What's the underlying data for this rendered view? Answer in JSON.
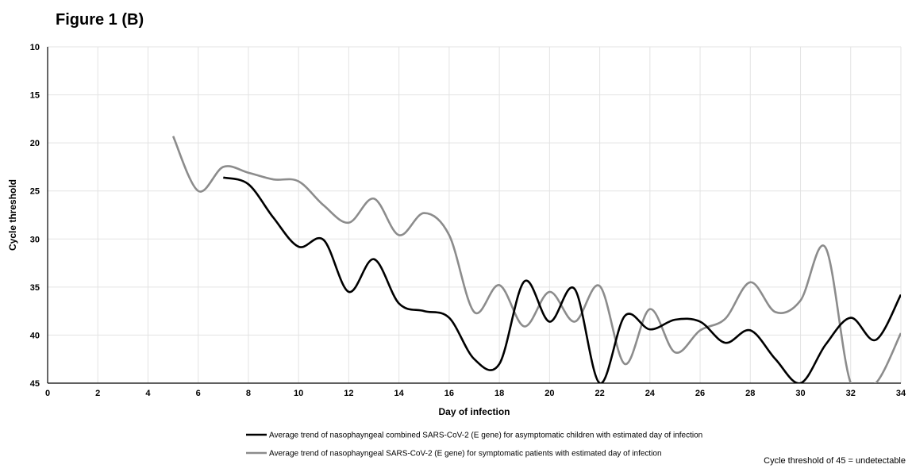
{
  "figure_title": "Figure 1 (B)",
  "note": "Cycle threshold of 45  = undetectable",
  "chart_data": {
    "type": "line",
    "xlabel": "Day of infection",
    "ylabel": "Cycle threshold",
    "xlim": [
      0,
      34
    ],
    "ylim": [
      10,
      45
    ],
    "y_inverted": true,
    "x_ticks": [
      0,
      2,
      4,
      6,
      8,
      10,
      12,
      14,
      16,
      18,
      20,
      22,
      24,
      26,
      28,
      30,
      32,
      34
    ],
    "y_ticks": [
      10,
      15,
      20,
      25,
      30,
      35,
      40,
      45
    ],
    "grid": true,
    "legend_position": "bottom",
    "series": [
      {
        "name": "Average trend of nasophayngeal combined SARS-CoV-2 (E gene) for asymptomatic children with estimated day of infection",
        "color": "#000000",
        "x": [
          7,
          8,
          9,
          10,
          11,
          12,
          13,
          14,
          15,
          16,
          17,
          18,
          19,
          20,
          21,
          22,
          23,
          24,
          25,
          26,
          27,
          28,
          29,
          30,
          31,
          32,
          33,
          34
        ],
        "y": [
          23.6,
          24.3,
          27.8,
          30.8,
          30.1,
          35.5,
          32.1,
          36.7,
          37.5,
          38.2,
          42.5,
          43.0,
          34.4,
          38.6,
          35.2,
          45.0,
          38.0,
          39.4,
          38.4,
          38.6,
          40.8,
          39.5,
          42.5,
          45.0,
          41.0,
          38.2,
          40.5,
          35.8
        ]
      },
      {
        "name": "Average trend of nasophayngeal SARS-CoV-2 (E gene) for symptomatic patients with estimated day of infection",
        "color": "#8c8c8c",
        "x": [
          5,
          6,
          7,
          8,
          9,
          10,
          11,
          12,
          13,
          14,
          15,
          16,
          17,
          18,
          19,
          20,
          21,
          22,
          23,
          24,
          25,
          26,
          27,
          28,
          29,
          30,
          31,
          32,
          33,
          34
        ],
        "y": [
          19.3,
          25.0,
          22.5,
          23.1,
          23.8,
          24.0,
          26.5,
          28.3,
          25.8,
          29.6,
          27.3,
          29.6,
          37.6,
          34.8,
          39.1,
          35.5,
          38.6,
          34.9,
          43.0,
          37.3,
          41.8,
          39.5,
          38.3,
          34.5,
          37.6,
          36.4,
          30.9,
          45.0,
          45.0,
          39.8
        ]
      }
    ]
  }
}
